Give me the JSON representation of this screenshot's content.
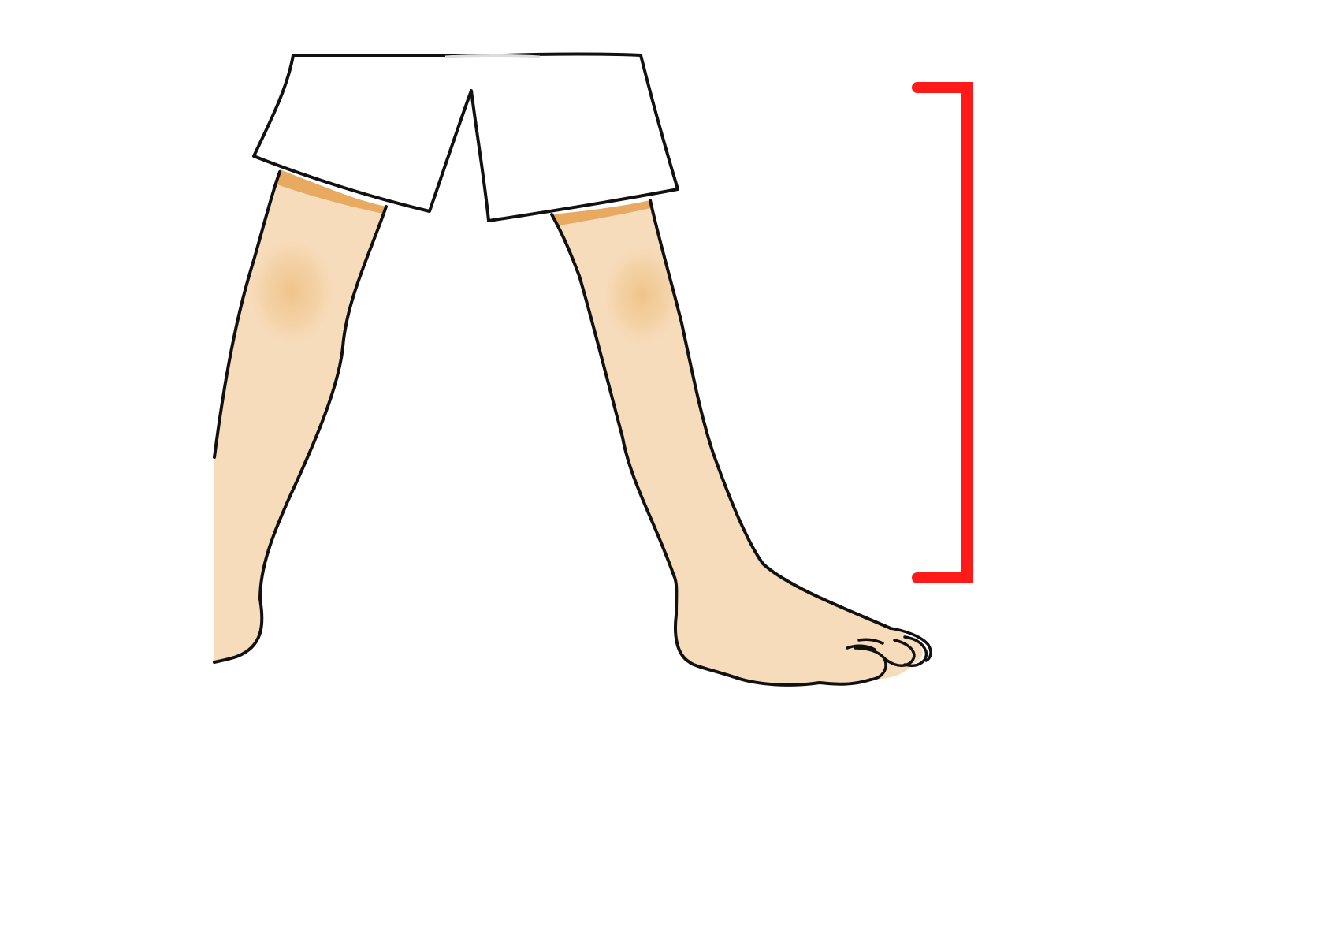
{
  "figure": {
    "subject": "legs-walking-with-lower-leg-bracket",
    "colors": {
      "background": "#ffffff",
      "skin": "#f7dcbc",
      "skin_shade": "#efbf7f",
      "cuff_shade": "#e8a960",
      "outline": "#111111",
      "shorts": "#ffffff",
      "bracket": "#ff1a1a"
    }
  }
}
